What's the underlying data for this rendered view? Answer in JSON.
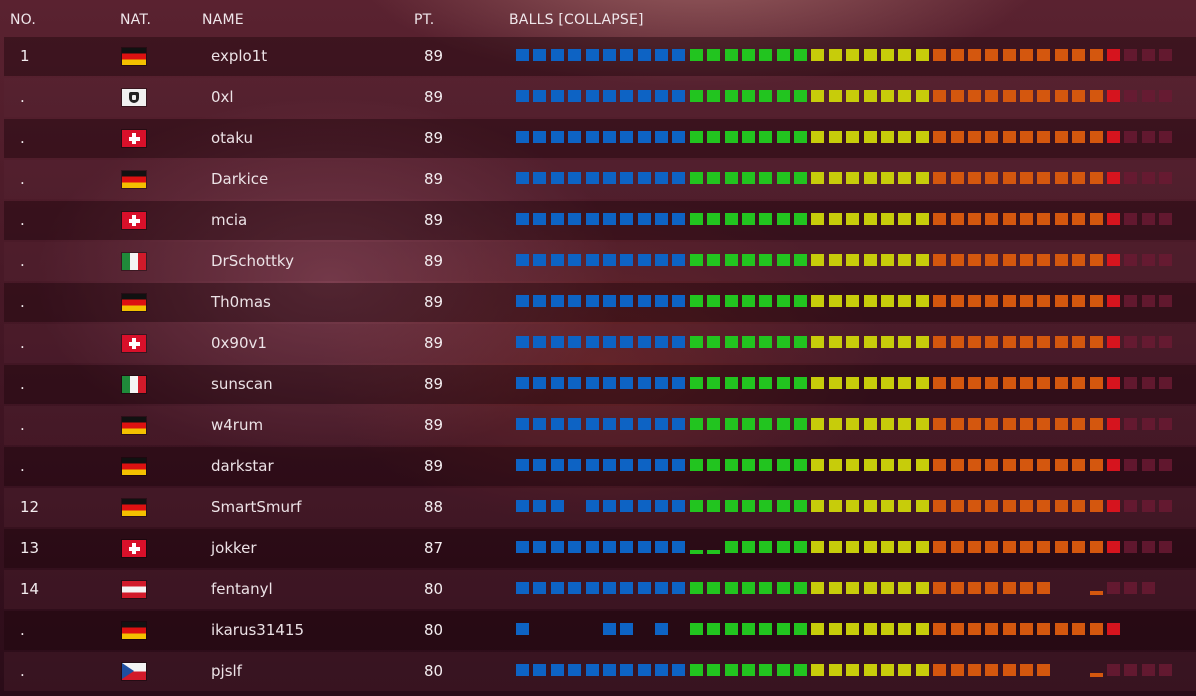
{
  "header": {
    "no": "NO.",
    "nat": "NAT.",
    "name": "NAME",
    "pt": "PT.",
    "balls": "BALLS [COLLAPSE]"
  },
  "colors": {
    "blue": "#0d63c4",
    "green": "#22c41f",
    "yellow": "#c7cc0a",
    "orange": "#d4570e",
    "red": "#d6141e",
    "dark": "#6a1a32"
  },
  "ball_groups": [
    "blue",
    "blue",
    "blue",
    "blue",
    "blue",
    "blue",
    "blue",
    "blue",
    "blue",
    "blue",
    "green",
    "green",
    "green",
    "green",
    "green",
    "green",
    "green",
    "yellow",
    "yellow",
    "yellow",
    "yellow",
    "yellow",
    "yellow",
    "yellow",
    "orange",
    "orange",
    "orange",
    "orange",
    "orange",
    "orange",
    "orange",
    "orange",
    "orange",
    "orange",
    "red",
    "dark",
    "dark",
    "dark"
  ],
  "rows": [
    {
      "no": "1",
      "nat": "de",
      "name": "explo1t",
      "pt": "89",
      "balls": "11111111111111111111111111111111111333"
    },
    {
      "no": ".",
      "nat": "pirate",
      "name": "0xl",
      "pt": "89",
      "balls": "11111111111111111111111111111111111333"
    },
    {
      "no": ".",
      "nat": "ch",
      "name": "otaku",
      "pt": "89",
      "balls": "11111111111111111111111111111111111333"
    },
    {
      "no": ".",
      "nat": "de",
      "name": "Darkice",
      "pt": "89",
      "balls": "11111111111111111111111111111111111333"
    },
    {
      "no": ".",
      "nat": "ch",
      "name": "mcia",
      "pt": "89",
      "balls": "11111111111111111111111111111111111333"
    },
    {
      "no": ".",
      "nat": "it",
      "name": "DrSchottky",
      "pt": "89",
      "balls": "11111111111111111111111111111111111333"
    },
    {
      "no": ".",
      "nat": "de",
      "name": "Th0mas",
      "pt": "89",
      "balls": "11111111111111111111111111111111111333"
    },
    {
      "no": ".",
      "nat": "ch",
      "name": "0x90v1",
      "pt": "89",
      "balls": "11111111111111111111111111111111111333"
    },
    {
      "no": ".",
      "nat": "it",
      "name": "sunscan",
      "pt": "89",
      "balls": "11111111111111111111111111111111111333"
    },
    {
      "no": ".",
      "nat": "de",
      "name": "w4rum",
      "pt": "89",
      "balls": "11111111111111111111111111111111111333"
    },
    {
      "no": ".",
      "nat": "de",
      "name": "darkstar",
      "pt": "89",
      "balls": "11111111111111111111111111111111111333"
    },
    {
      "no": "12",
      "nat": "de",
      "name": "SmartSmurf",
      "pt": "88",
      "balls": "11101111111111111111111111111111111333"
    },
    {
      "no": "13",
      "nat": "ch",
      "name": "jokker",
      "pt": "87",
      "balls": "11111111112211111111111111111111111333"
    },
    {
      "no": "14",
      "nat": "at",
      "name": "fentanyl",
      "pt": "80",
      "balls": "11111111111111111111111111111110023330"
    },
    {
      "no": ".",
      "nat": "de",
      "name": "ikarus31415",
      "pt": "80",
      "balls": "10000110101111111111111111111111111000"
    },
    {
      "no": ".",
      "nat": "cz",
      "name": "pjslf",
      "pt": "80",
      "balls": "11111111111111111111111111111110023333"
    }
  ]
}
